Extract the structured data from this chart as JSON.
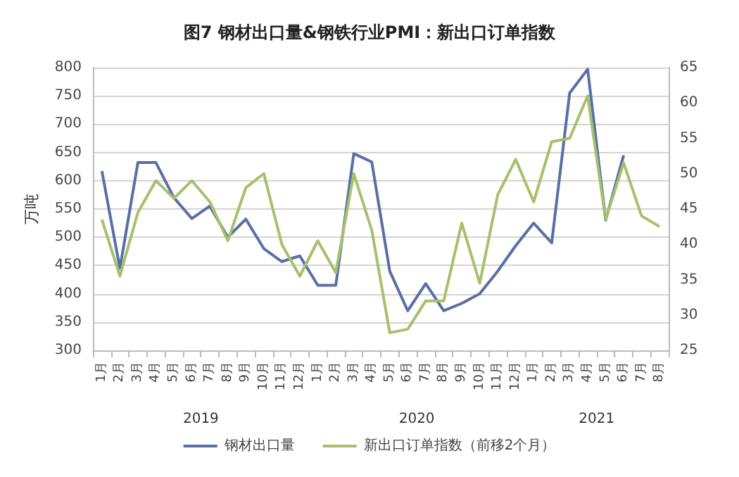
{
  "chart_data": {
    "type": "line",
    "title": "图7 钢材出口量&钢铁行业PMI：新出口订单指数",
    "ylabel": "万吨",
    "categories": [
      "1月",
      "2月",
      "3月",
      "4月",
      "5月",
      "6月",
      "7月",
      "8月",
      "9月",
      "10月",
      "11月",
      "12月",
      "1月",
      "2月",
      "3月",
      "4月",
      "5月",
      "6月",
      "7月",
      "8月",
      "9月",
      "10月",
      "11月",
      "12月",
      "1月",
      "2月",
      "3月",
      "4月",
      "5月",
      "6月",
      "7月",
      "8月"
    ],
    "series": [
      {
        "name": "钢材出口量",
        "color": "#5a6fa6",
        "values": [
          617,
          445,
          632,
          632,
          570,
          533,
          555,
          500,
          532,
          480,
          457,
          467,
          415,
          415,
          648,
          633,
          440,
          370,
          418,
          370,
          383,
          400,
          440,
          485,
          525,
          490,
          755,
          797,
          530,
          645,
          null,
          null
        ]
      },
      {
        "name": "新出口订单指数（前移2个月）",
        "color": "#a6c16c",
        "axis": "y2",
        "values": [
          43.5,
          35.5,
          44.5,
          49,
          46.5,
          49,
          46,
          40.5,
          48,
          50,
          40,
          35.5,
          40.5,
          36,
          50,
          42,
          27.5,
          28,
          32,
          32,
          43,
          34.5,
          47,
          52,
          46,
          54.5,
          55,
          61,
          43.5,
          51.5,
          44,
          42.5
        ]
      }
    ],
    "annotations": [
      "2019",
      "2020",
      "2021"
    ],
    "ylim": [
      300,
      800
    ],
    "yticks": [
      300,
      350,
      400,
      450,
      500,
      550,
      600,
      650,
      700,
      750,
      800
    ],
    "y2lim": [
      25,
      65
    ],
    "y2ticks": [
      25,
      30,
      35,
      40,
      45,
      50,
      55,
      60,
      65
    ],
    "grid": "y",
    "legend": "bottom",
    "marker": "none",
    "line_style": "solid"
  }
}
